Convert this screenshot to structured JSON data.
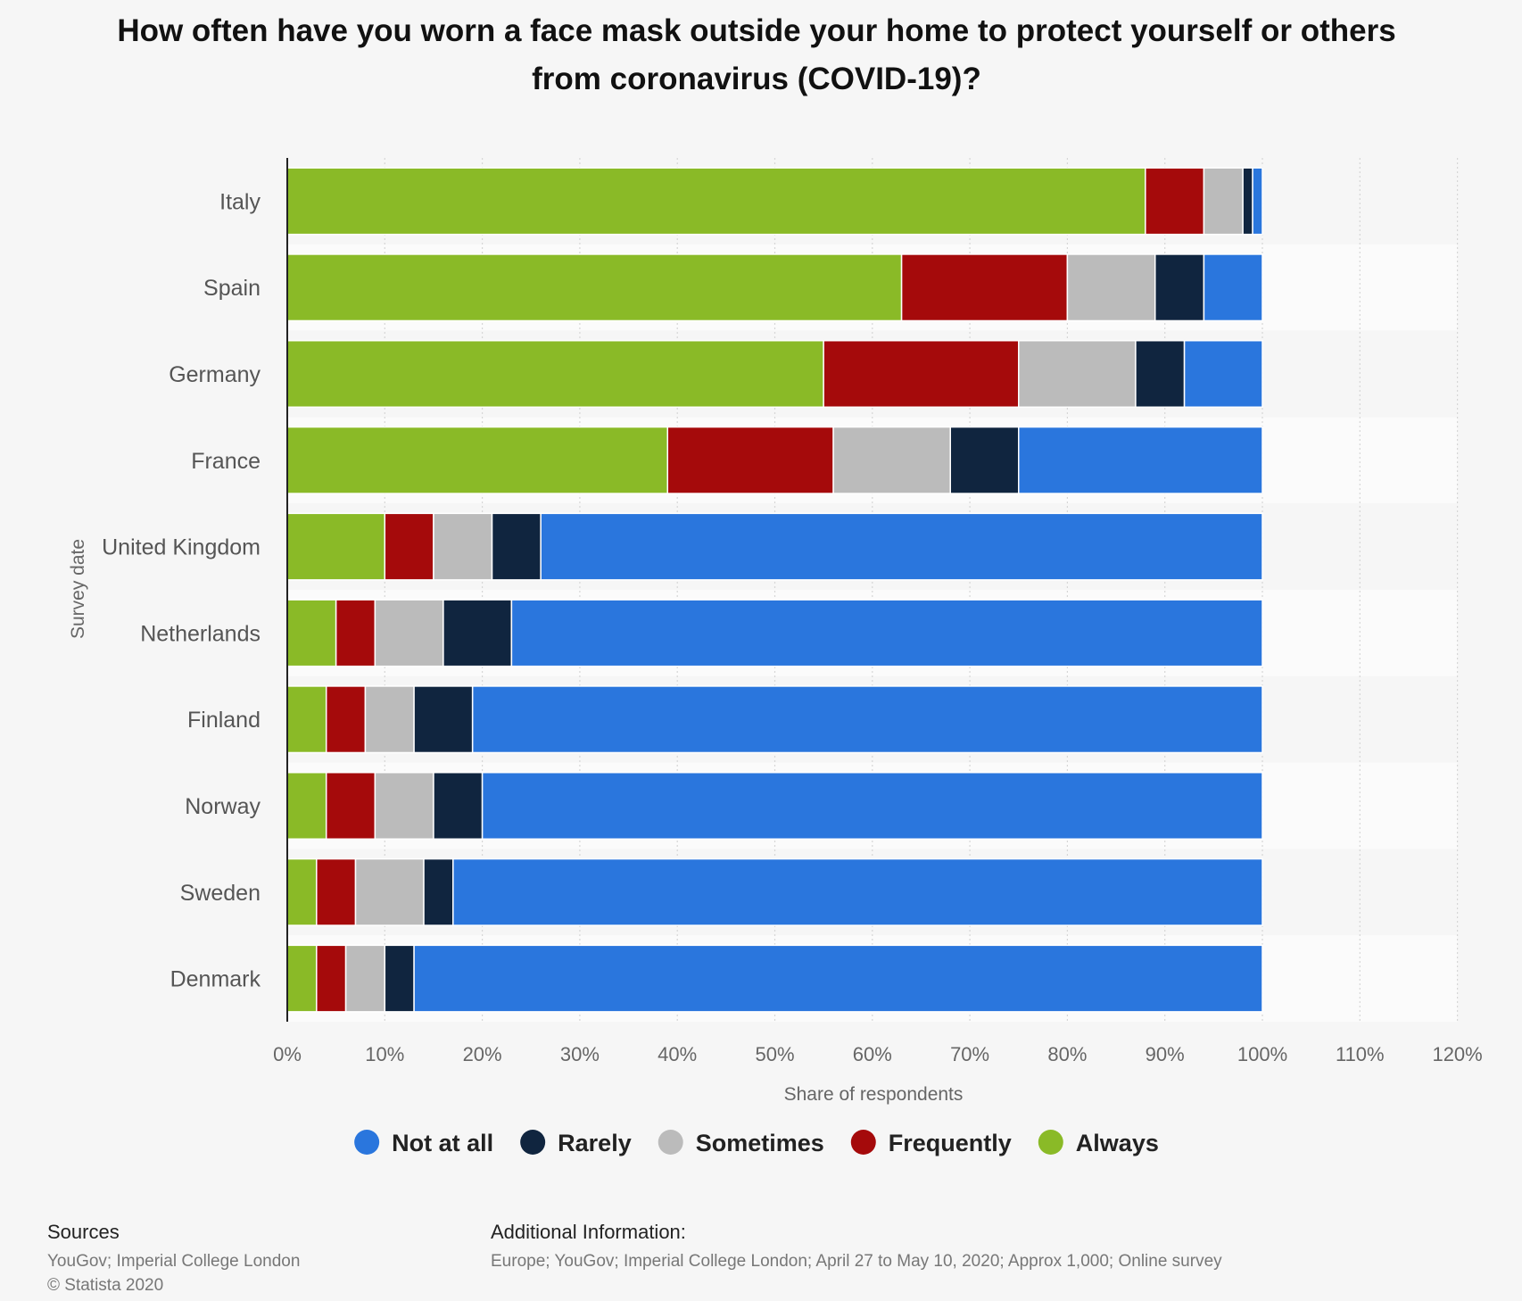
{
  "chart_data": {
    "type": "bar",
    "orientation": "horizontal",
    "stacked": true,
    "title_lines": [
      "How often have you worn a face mask outside your home to protect yourself or others",
      "from coronavirus (COVID-19)?"
    ],
    "xlabel": "Share of respondents",
    "ylabel": "Survey date",
    "xlim": [
      0,
      120
    ],
    "x_ticks": [
      "0%",
      "10%",
      "20%",
      "30%",
      "40%",
      "50%",
      "60%",
      "70%",
      "80%",
      "90%",
      "100%",
      "110%",
      "120%"
    ],
    "categories": [
      "Italy",
      "Spain",
      "Germany",
      "France",
      "United Kingdom",
      "Netherlands",
      "Finland",
      "Norway",
      "Sweden",
      "Denmark"
    ],
    "series": [
      {
        "name": "Always",
        "color": "#8aba27",
        "values": [
          88,
          63,
          55,
          39,
          10,
          5,
          4,
          4,
          3,
          3
        ]
      },
      {
        "name": "Frequently",
        "color": "#a50a0b",
        "values": [
          6,
          17,
          20,
          17,
          5,
          4,
          4,
          5,
          4,
          3
        ]
      },
      {
        "name": "Sometimes",
        "color": "#bbbbbb",
        "values": [
          4,
          9,
          12,
          12,
          6,
          7,
          5,
          6,
          7,
          4
        ]
      },
      {
        "name": "Rarely",
        "color": "#10253f",
        "values": [
          1,
          5,
          5,
          7,
          5,
          7,
          6,
          5,
          3,
          3
        ]
      },
      {
        "name": "Not at all",
        "color": "#2a76dd",
        "values": [
          1,
          6,
          8,
          25,
          74,
          77,
          81,
          80,
          83,
          87
        ]
      }
    ],
    "legend_order": [
      "Not at all",
      "Rarely",
      "Sometimes",
      "Frequently",
      "Always"
    ],
    "legend_position": "bottom",
    "grid": true
  },
  "footer": {
    "sources_heading": "Sources",
    "sources_line1": "YouGov; Imperial College London",
    "sources_line2": "© Statista 2020",
    "additional_heading": "Additional Information:",
    "additional_line": "Europe; YouGov; Imperial College London; April 27 to May 10, 2020; Approx 1,000; Online survey"
  }
}
